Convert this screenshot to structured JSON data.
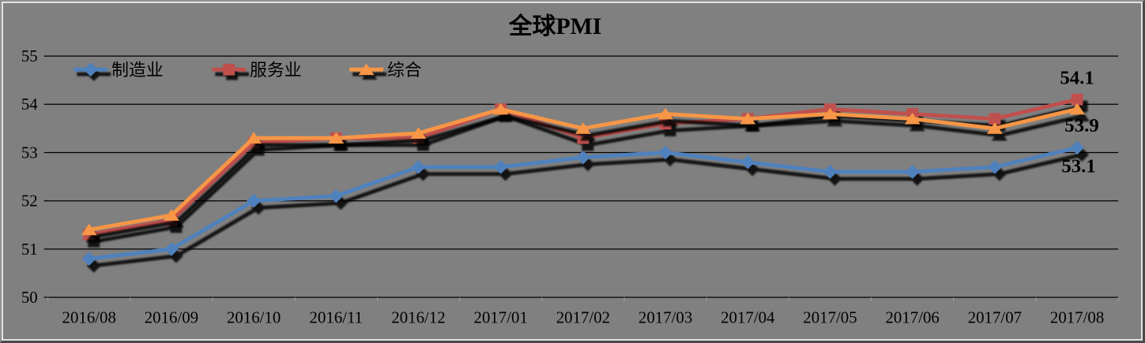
{
  "chart_data": {
    "type": "line",
    "title": "全球PMI",
    "x": [
      "2016/08",
      "2016/09",
      "2016/10",
      "2016/11",
      "2016/12",
      "2017/01",
      "2017/02",
      "2017/03",
      "2017/04",
      "2017/05",
      "2017/06",
      "2017/07",
      "2017/08"
    ],
    "series": [
      {
        "id": "manufacturing",
        "name": "制造业",
        "marker": "diamond-icon",
        "color": "#4f81bd",
        "values": [
          50.8,
          51.0,
          52.0,
          52.1,
          52.7,
          52.7,
          52.9,
          53.0,
          52.8,
          52.6,
          52.6,
          52.7,
          53.1
        ]
      },
      {
        "id": "services",
        "name": "服务业",
        "marker": "square-icon",
        "color": "#c0504d",
        "values": [
          51.3,
          51.6,
          53.2,
          53.3,
          53.3,
          53.9,
          53.3,
          53.6,
          53.7,
          53.9,
          53.8,
          53.7,
          54.1
        ]
      },
      {
        "id": "composite",
        "name": "综合",
        "marker": "triangle-icon",
        "color": "#f79646",
        "values": [
          51.4,
          51.7,
          53.3,
          53.3,
          53.4,
          53.9,
          53.5,
          53.8,
          53.7,
          53.8,
          53.7,
          53.5,
          53.9
        ]
      }
    ],
    "yticks": [
      "55",
      "54",
      "53",
      "52",
      "51",
      "50"
    ],
    "ylim": [
      50,
      55
    ],
    "grid": "horizontal-black",
    "legend_position": "inside-top-left",
    "end_labels": [
      {
        "series": "services",
        "text": "54.1",
        "color": "#b51508"
      },
      {
        "series": "composite",
        "text": "53.9",
        "color": "#f79646"
      },
      {
        "series": "manufacturing",
        "text": "53.1",
        "color": "#558ed5"
      }
    ],
    "style": {
      "background": "#808080",
      "gridline_color": "#000000",
      "shadow_color": "#000000",
      "axis_text_color": "#000000"
    }
  }
}
